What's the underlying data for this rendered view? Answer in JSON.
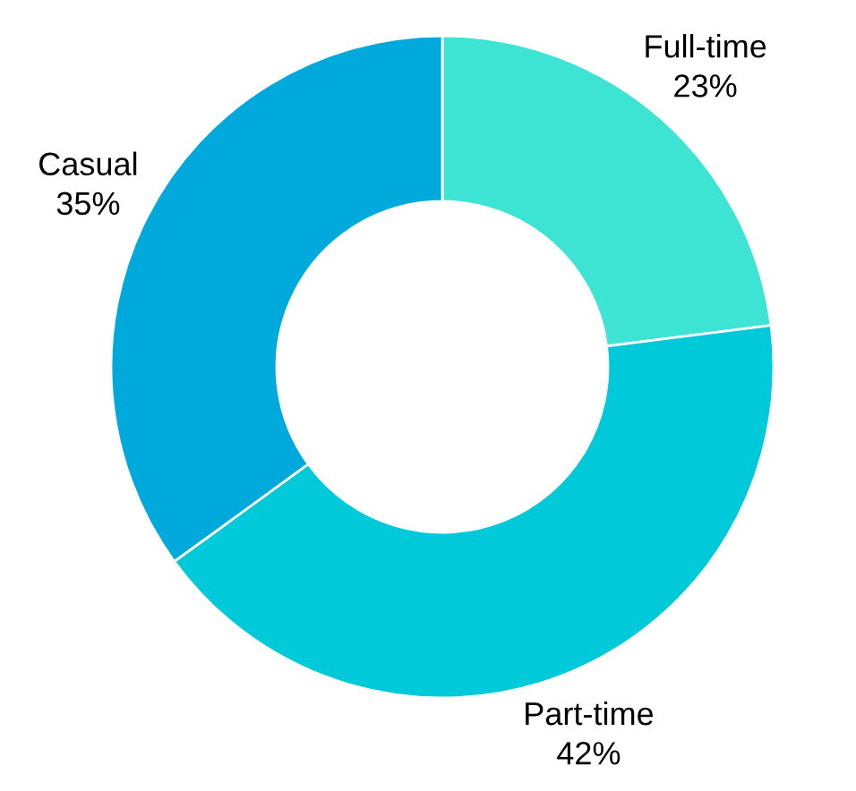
{
  "chart_data": {
    "type": "donut",
    "categories": [
      "Full-time",
      "Part-time",
      "Casual"
    ],
    "values": [
      23,
      42,
      35
    ],
    "colors": [
      "#3de3d3",
      "#00c9d9",
      "#00a9dc"
    ],
    "value_labels": [
      "23%",
      "42%",
      "35%"
    ],
    "legend": false
  }
}
